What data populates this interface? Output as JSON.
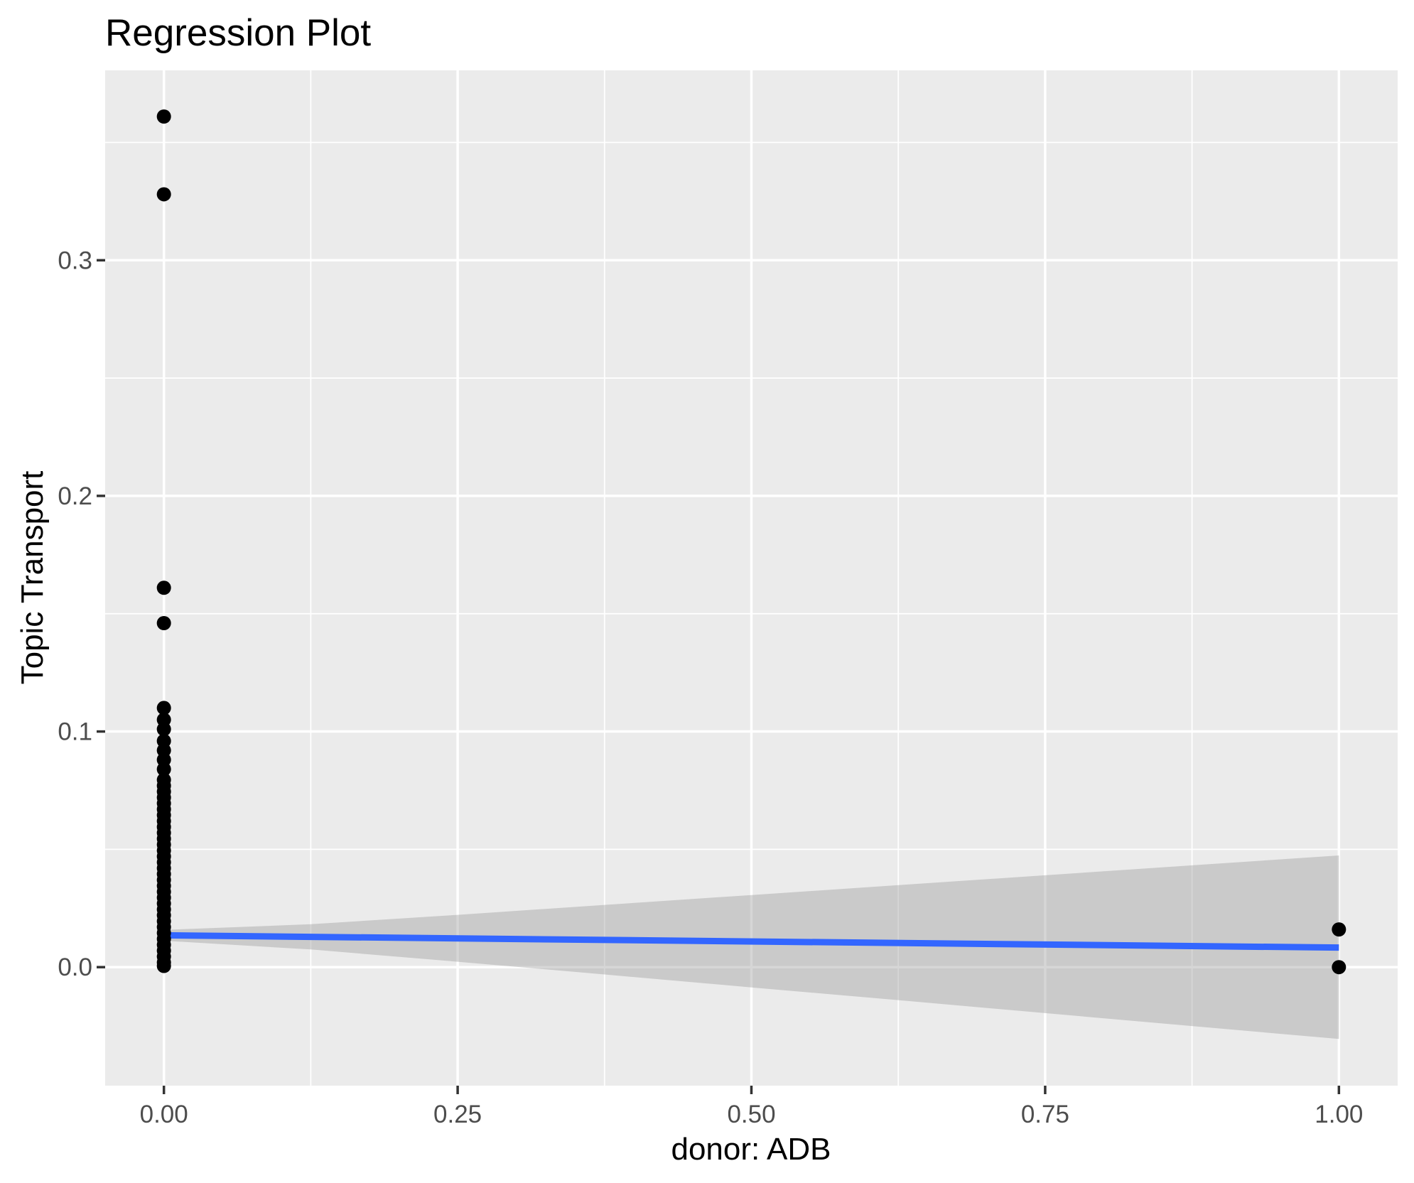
{
  "title": "Regression Plot",
  "chart_data": {
    "type": "scatter",
    "title": "Regression Plot",
    "xlabel": "donor: ADB",
    "ylabel": "Topic Transport",
    "legend_position": "none",
    "grid": true,
    "xlim": [
      -0.05,
      1.05
    ],
    "ylim": [
      -0.0503,
      0.3806
    ],
    "x_ticks": {
      "values": [
        0.0,
        0.25,
        0.5,
        0.75,
        1.0
      ],
      "labels": [
        "0.00",
        "0.25",
        "0.50",
        "0.75",
        "1.00"
      ]
    },
    "y_ticks": {
      "values": [
        0.0,
        0.1,
        0.2,
        0.3
      ],
      "labels": [
        "0.0",
        "0.1",
        "0.2",
        "0.3"
      ]
    },
    "x_minor_gridlines": [
      0.125,
      0.375,
      0.625,
      0.875
    ],
    "y_minor_gridlines": [
      0.05,
      0.15,
      0.25,
      0.35
    ],
    "points": [
      {
        "x": 0,
        "y_values": [
          0.361,
          0.328,
          0.161,
          0.146,
          0.11,
          0.105,
          0.101,
          0.096,
          0.092,
          0.088,
          0.084,
          0.0795,
          0.077,
          0.0745,
          0.072,
          0.0695,
          0.067,
          0.0645,
          0.062,
          0.0595,
          0.057,
          0.0545,
          0.052,
          0.0495,
          0.047,
          0.0445,
          0.042,
          0.0395,
          0.037,
          0.0345,
          0.032,
          0.0295,
          0.027,
          0.0245,
          0.022,
          0.0195,
          0.017,
          0.0145,
          0.012,
          0.0095,
          0.007,
          0.0045,
          0.002,
          0.0005
        ]
      },
      {
        "x": 1,
        "y_values": [
          0.016,
          0.0
        ]
      }
    ],
    "regression_line": {
      "x_start": 0.0,
      "y_start": 0.0135,
      "x_end": 1.0,
      "y_end": 0.0083
    },
    "confidence_band": [
      {
        "x": 0.0,
        "lower": 0.0112,
        "upper": 0.0158
      },
      {
        "x": 0.125,
        "lower": 0.0075,
        "upper": 0.0182
      },
      {
        "x": 0.25,
        "lower": 0.0023,
        "upper": 0.0222
      },
      {
        "x": 0.375,
        "lower": -0.0031,
        "upper": 0.0264
      },
      {
        "x": 0.5,
        "lower": -0.0086,
        "upper": 0.0306
      },
      {
        "x": 0.625,
        "lower": -0.014,
        "upper": 0.0348
      },
      {
        "x": 0.75,
        "lower": -0.0195,
        "upper": 0.039
      },
      {
        "x": 0.875,
        "lower": -0.025,
        "upper": 0.0432
      },
      {
        "x": 1.0,
        "lower": -0.0305,
        "upper": 0.0474
      }
    ],
    "colors": {
      "panel_background": "#EBEBEB",
      "gridline": "#FFFFFF",
      "point": "#000000",
      "regression_line": "#3366FF",
      "confidence_band": "#999999",
      "confidence_band_alpha": 0.4,
      "tick_mark": "#333333",
      "tick_label": "#4D4D4D",
      "text": "#000000"
    }
  }
}
